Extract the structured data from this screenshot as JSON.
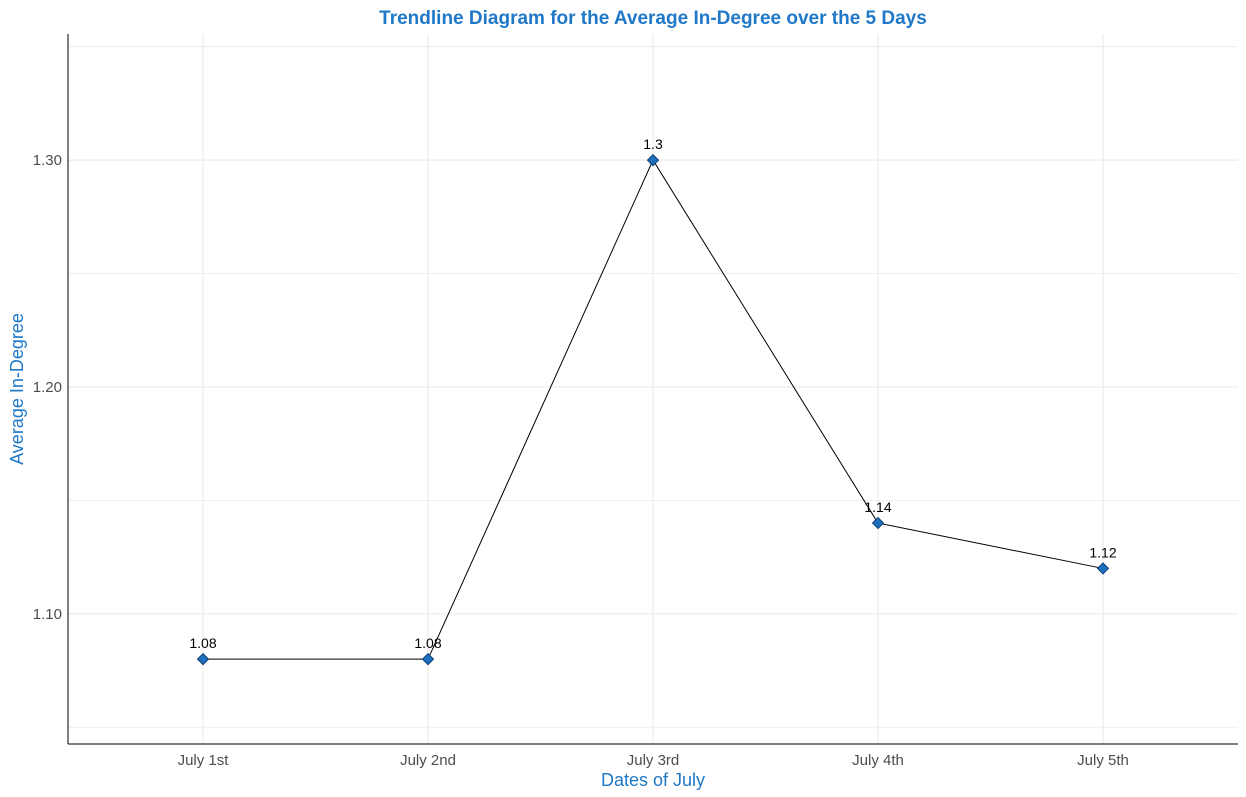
{
  "chart_data": {
    "type": "line",
    "title": "Trendline Diagram for the Average In-Degree over the 5 Days",
    "xlabel": "Dates of July",
    "ylabel": "Average In-Degree",
    "categories": [
      "July 1st",
      "July 2nd",
      "July 3rd",
      "July 4th",
      "July 5th"
    ],
    "values": [
      1.08,
      1.08,
      1.3,
      1.14,
      1.12
    ],
    "data_labels": [
      "1.08",
      "1.08",
      "1.3",
      "1.14",
      "1.12"
    ],
    "y_ticks": [
      1.1,
      1.2,
      1.3
    ],
    "y_tick_labels": [
      "1.10",
      "1.20",
      "1.30"
    ],
    "ylim": [
      1.0426,
      1.3556
    ],
    "grid": true,
    "legend": "none"
  },
  "colors": {
    "title": "#1f78c8",
    "axis_title": "#1f78c8",
    "marker": "#1f6fbf",
    "marker_stroke": "#0d3f73",
    "line": "#000000",
    "grid": "#ebebeb",
    "axis": "#000000"
  }
}
